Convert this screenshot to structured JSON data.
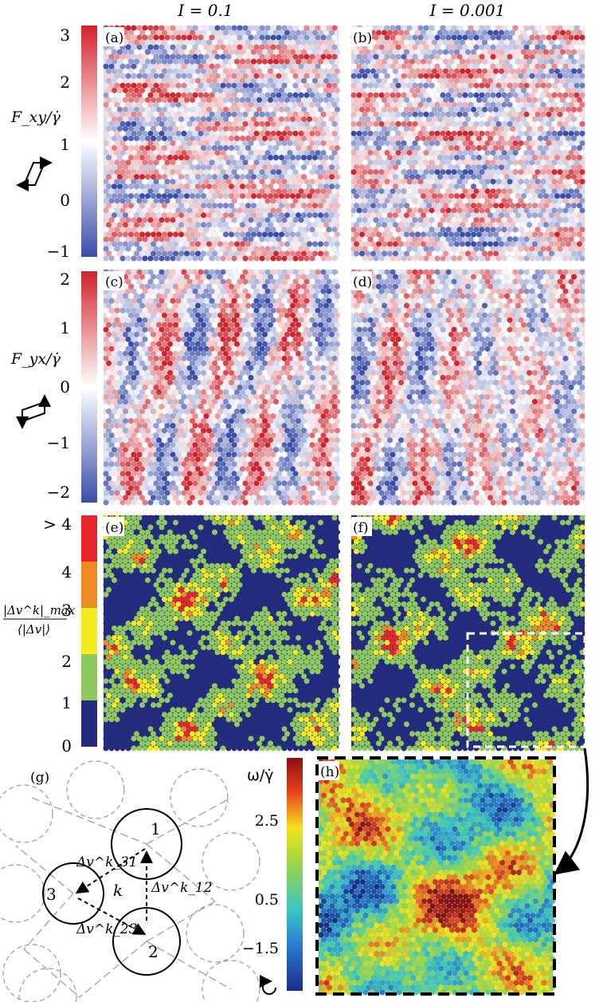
{
  "column_headers": [
    "I = 0.1",
    "I = 0.001"
  ],
  "panel_labels": [
    "(a)",
    "(b)",
    "(c)",
    "(d)",
    "(e)",
    "(f)",
    "(g)",
    "(h)"
  ],
  "row1": {
    "label": "F_xy/γ̇",
    "ticks": [
      "3",
      "2",
      "1",
      "0",
      "−1"
    ],
    "colormap": [
      "#3a4da8",
      "#ffffff",
      "#d0232a"
    ]
  },
  "row2": {
    "label": "F_yx/γ̇",
    "ticks": [
      "2",
      "1",
      "0",
      "−1",
      "−2"
    ],
    "colormap": [
      "#3a4da8",
      "#ffffff",
      "#d0232a"
    ]
  },
  "row3": {
    "label_num": "|Δv^k|_max",
    "label_den": "⟨|Δv|⟩",
    "ticks": [
      "> 4",
      "4",
      "3",
      "2",
      "1",
      "0"
    ],
    "bands": [
      "#e8252a",
      "#f08a24",
      "#f5ea1f",
      "#8ec95f",
      "#242a7c"
    ]
  },
  "diagram_g": {
    "circle_labels": [
      "1",
      "2",
      "3"
    ],
    "center_label": "k",
    "edge_labels": [
      "Δv^k_31",
      "Δv^k_12",
      "Δv^k_23"
    ]
  },
  "panel_h": {
    "colorbar_label": "ω/γ̇",
    "ticks": [
      "2.5",
      "0.5",
      "−1.5"
    ],
    "colormap": [
      "#1a2c8c",
      "#2a7fd0",
      "#3cc6c0",
      "#9cd646",
      "#f5e21a",
      "#e8451e",
      "#8c0f14"
    ]
  }
}
